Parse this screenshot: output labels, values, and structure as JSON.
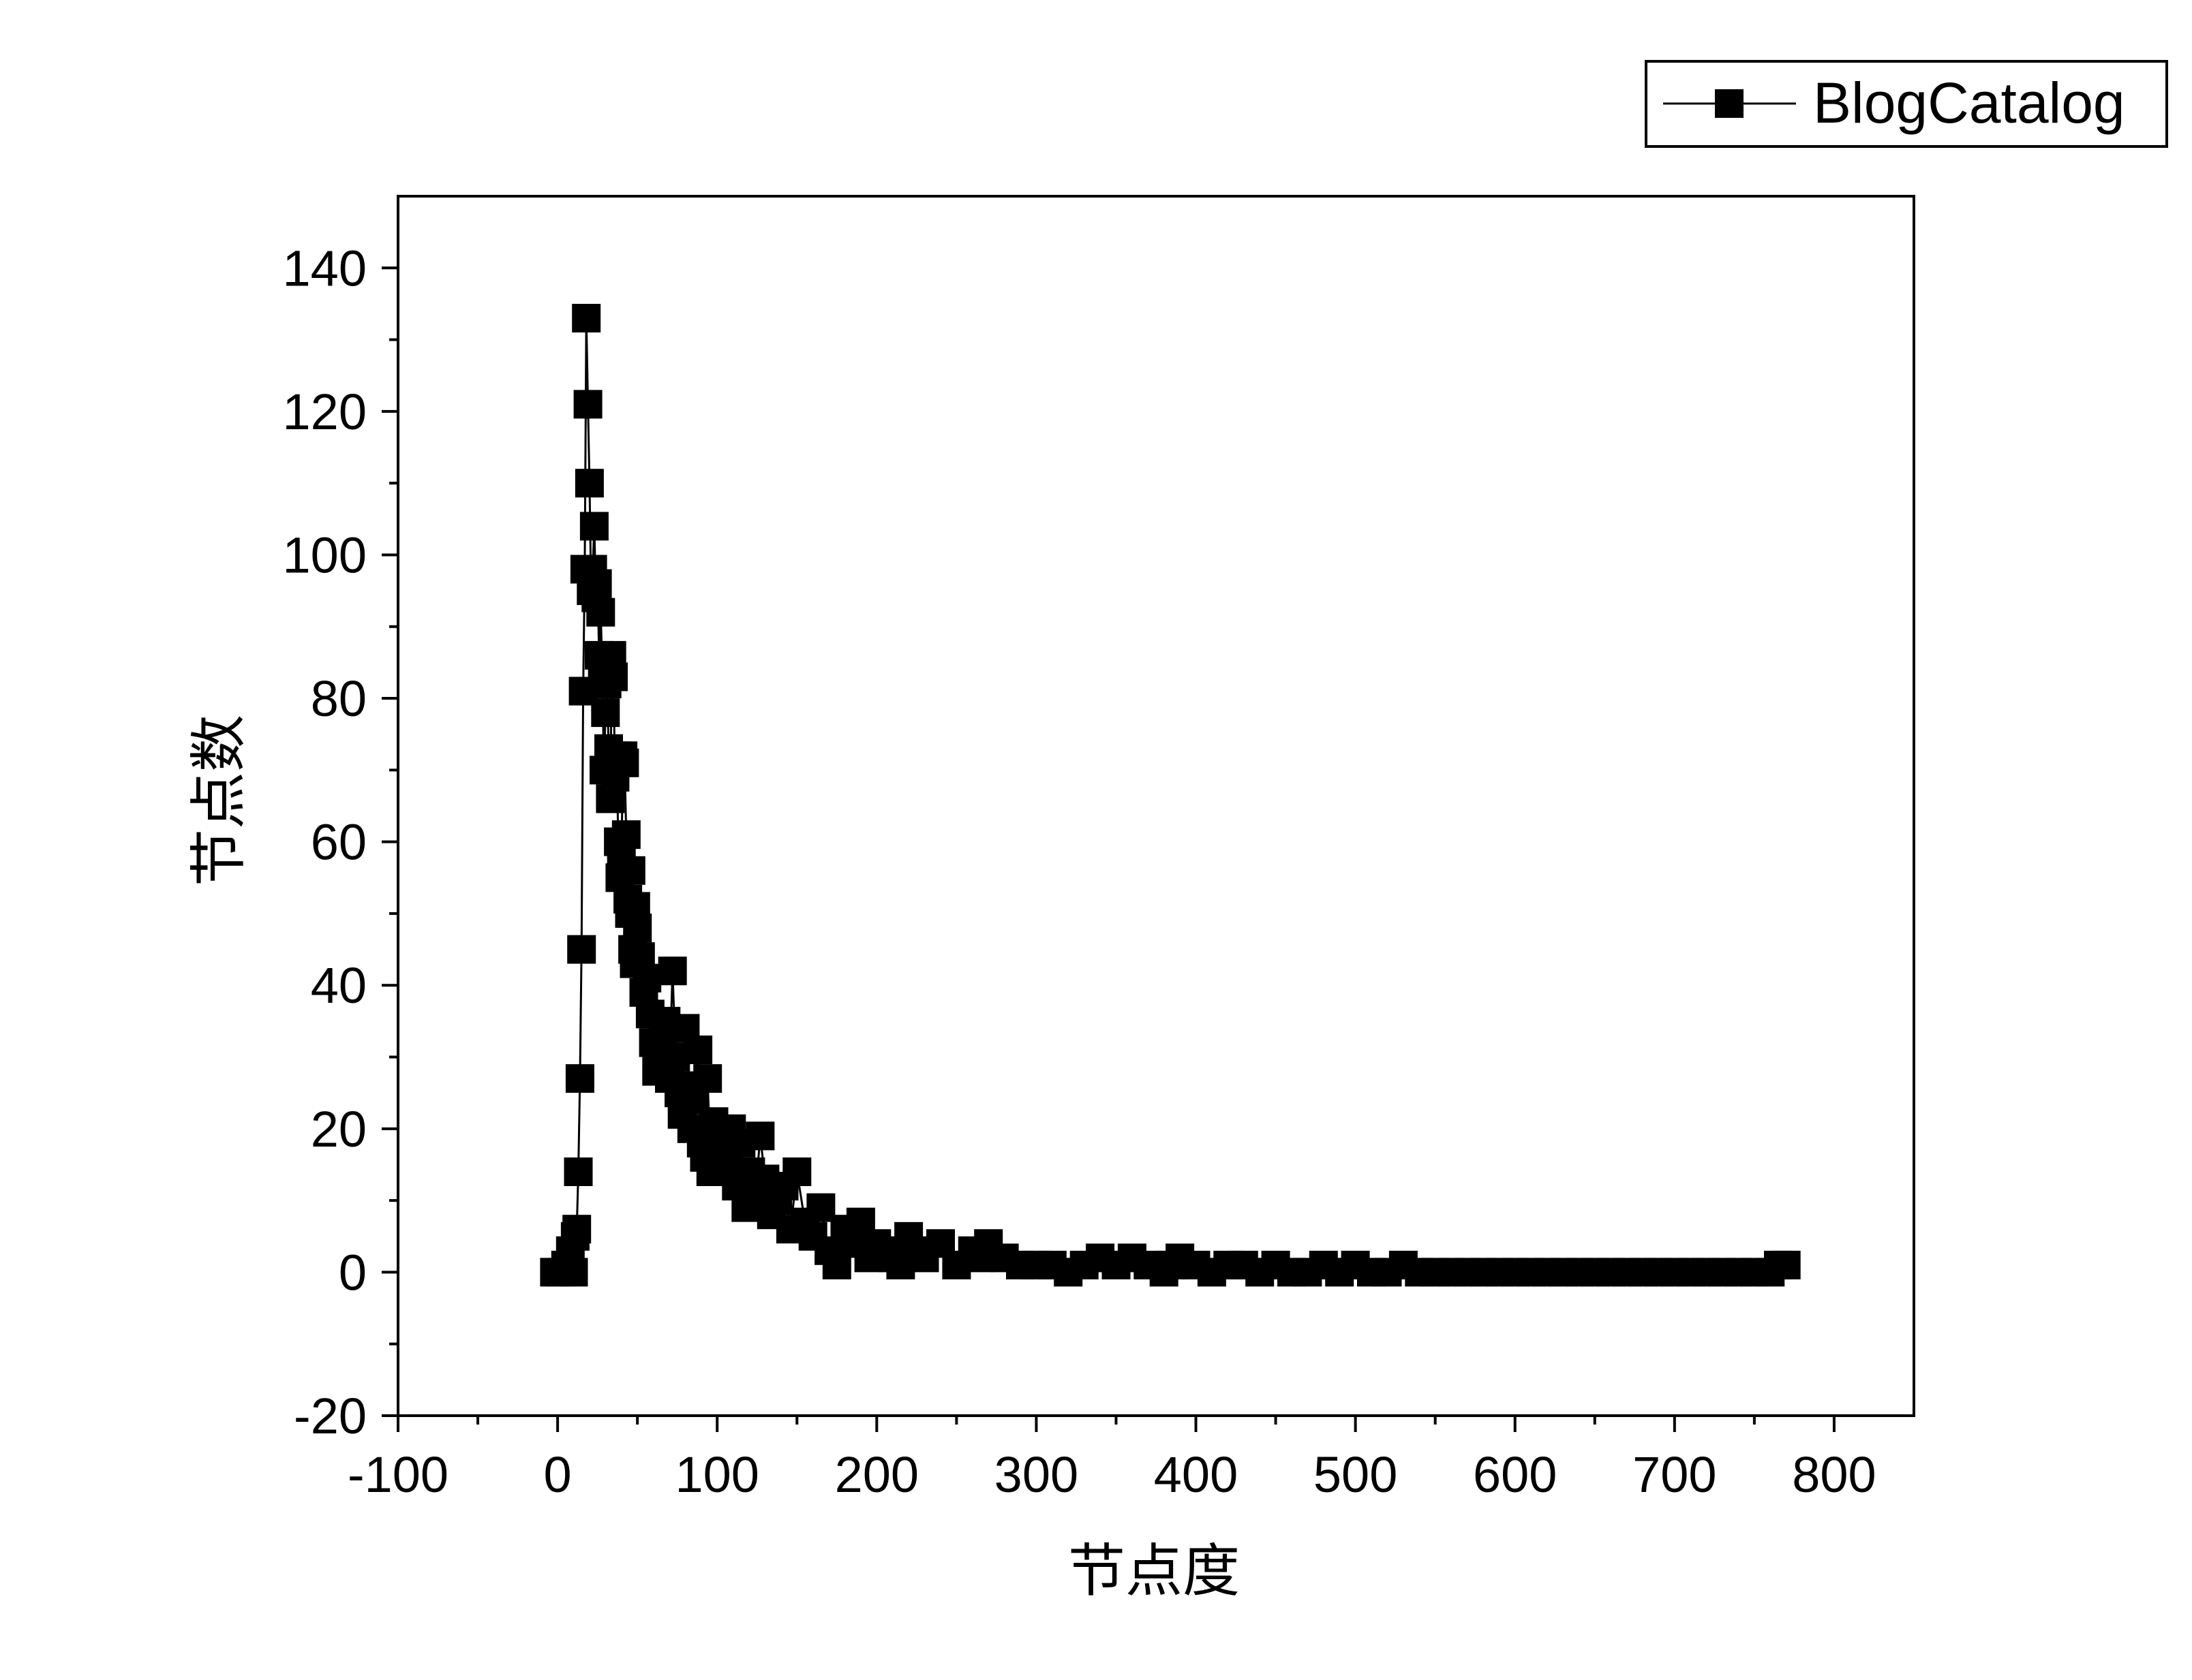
{
  "chart_data": {
    "type": "line",
    "title": "",
    "xlabel": "节点度",
    "ylabel": "节点数",
    "xlim": [
      -100,
      850
    ],
    "ylim": [
      -20,
      150
    ],
    "xticks": [
      -100,
      0,
      100,
      200,
      300,
      400,
      500,
      600,
      700,
      800
    ],
    "yticks": [
      -20,
      0,
      20,
      40,
      60,
      80,
      100,
      120,
      140
    ],
    "grid": false,
    "legend": {
      "placement": "top-right",
      "entries": [
        "BlogCatalog"
      ]
    },
    "marker": "square",
    "color": "#000000",
    "series": [
      {
        "name": "BlogCatalog",
        "x": [
          -2,
          2,
          5,
          8,
          10,
          11,
          12,
          13,
          14,
          15,
          16,
          17,
          18,
          19,
          20,
          21,
          22,
          23,
          24,
          25,
          26,
          27,
          28,
          29,
          30,
          31,
          32,
          33,
          34,
          35,
          36,
          37,
          38,
          39,
          40,
          41,
          42,
          43,
          44,
          45,
          46,
          47,
          48,
          49,
          50,
          52,
          54,
          56,
          58,
          60,
          62,
          64,
          66,
          68,
          70,
          72,
          74,
          76,
          78,
          80,
          82,
          84,
          86,
          88,
          90,
          92,
          94,
          96,
          98,
          100,
          103,
          106,
          109,
          112,
          115,
          118,
          121,
          124,
          127,
          130,
          134,
          138,
          142,
          146,
          150,
          155,
          160,
          165,
          170,
          175,
          180,
          185,
          190,
          195,
          200,
          205,
          210,
          215,
          220,
          225,
          230,
          240,
          250,
          260,
          265,
          270,
          280,
          290,
          300,
          310,
          320,
          330,
          340,
          350,
          360,
          370,
          380,
          385,
          390,
          400,
          410,
          420,
          430,
          440,
          450,
          460,
          470,
          480,
          490,
          500,
          510,
          520,
          530,
          540,
          550,
          560,
          570,
          580,
          590,
          600,
          610,
          620,
          630,
          640,
          650,
          660,
          670,
          680,
          690,
          700,
          710,
          720,
          730,
          740,
          750,
          760,
          765,
          770
        ],
        "y": [
          0,
          0,
          1,
          3,
          0,
          5,
          6,
          14,
          27,
          45,
          81,
          98,
          133,
          121,
          110,
          95,
          98,
          104,
          94,
          96,
          86,
          92,
          84,
          70,
          78,
          82,
          73,
          66,
          86,
          83,
          69,
          72,
          60,
          55,
          58,
          72,
          71,
          61,
          52,
          50,
          56,
          45,
          43,
          51,
          48,
          44,
          39,
          41,
          36,
          32,
          28,
          31,
          33,
          35,
          27,
          42,
          30,
          25,
          22,
          34,
          26,
          20,
          24,
          31,
          18,
          16,
          27,
          14,
          21,
          19,
          17,
          15,
          20,
          12,
          18,
          9,
          14,
          11,
          19,
          13,
          8,
          10,
          12,
          6,
          14,
          7,
          5,
          9,
          3,
          1,
          6,
          4,
          7,
          2,
          4,
          3,
          2,
          1,
          5,
          3,
          2,
          4,
          1,
          3,
          2,
          4,
          2,
          1,
          1,
          1,
          0,
          1,
          2,
          1,
          2,
          1,
          0,
          1,
          2,
          1,
          0,
          1,
          1,
          0,
          1,
          0,
          0,
          1,
          0,
          1,
          0,
          0,
          1,
          0,
          0,
          0,
          0,
          0,
          0,
          0,
          0,
          0,
          0,
          0,
          0,
          0,
          0,
          0,
          0,
          0,
          0,
          0,
          0,
          0,
          0,
          0,
          1,
          1
        ]
      }
    ]
  }
}
